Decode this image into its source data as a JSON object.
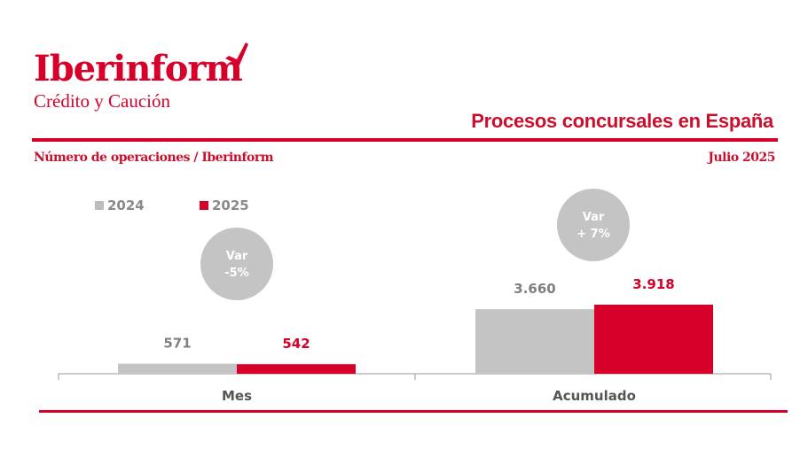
{
  "brand": {
    "name": "Iberinform",
    "subtitle": "Crédito y Caución"
  },
  "header": {
    "title": "Procesos concursales en España",
    "subtitle": "Número de operaciones / Iberinform",
    "date": "Julio 2025"
  },
  "colors": {
    "accent": "#d6002a",
    "series_2024": "#c4c4c4",
    "series_2025": "#d6002a",
    "badge": "#c4c4c4"
  },
  "chart_data": {
    "type": "bar",
    "categories": [
      "Mes",
      "Acumulado"
    ],
    "series": [
      {
        "name": "2024",
        "values": [
          571,
          3660
        ],
        "labels": [
          "571",
          "3.660"
        ]
      },
      {
        "name": "2025",
        "values": [
          542,
          3918
        ],
        "labels": [
          "542",
          "3.918"
        ]
      }
    ],
    "variation": [
      {
        "line1": "Var",
        "line2": "-5%"
      },
      {
        "line1": "Var",
        "line2": "+ 7%"
      }
    ],
    "legend_position": "top-left",
    "grid": false
  }
}
